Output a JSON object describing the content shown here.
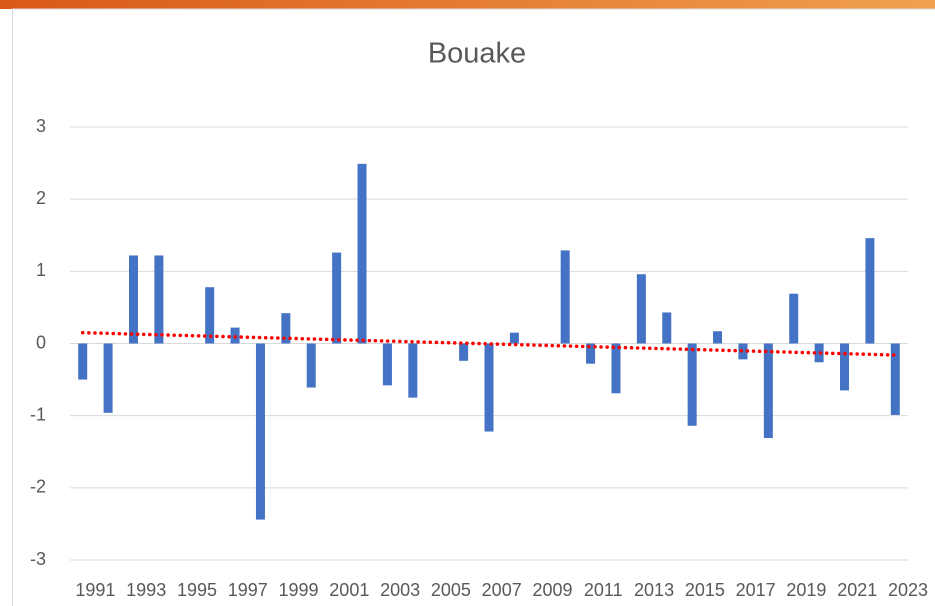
{
  "chart_data": {
    "type": "bar",
    "title": "Bouake",
    "categories": [
      "1991",
      null,
      "1993",
      null,
      "1995",
      null,
      "1997",
      null,
      "1999",
      null,
      "2001",
      null,
      "2003",
      null,
      "2005",
      null,
      "2007",
      null,
      "2009",
      null,
      "2011",
      null,
      "2013",
      null,
      "2015",
      null,
      "2017",
      null,
      "2019",
      null,
      "2021",
      null,
      "2023"
    ],
    "values": [
      -0.5,
      -0.96,
      1.22,
      1.22,
      0,
      0.78,
      0.22,
      -2.44,
      0.42,
      -0.61,
      1.26,
      2.49,
      -0.58,
      -0.75,
      0,
      -0.24,
      -1.22,
      0.15,
      0,
      1.29,
      -0.28,
      -0.69,
      0.96,
      0.43,
      -1.14,
      0.17,
      -0.22,
      -1.31,
      0.69,
      -0.26,
      -0.65,
      1.46,
      -0.99
    ],
    "color": "#4472c4",
    "ylim": [
      -3,
      3
    ],
    "yticks": [
      -3,
      -2,
      -1,
      0,
      1,
      2,
      3
    ],
    "grid": true,
    "trendline": {
      "start": 0.15,
      "end": -0.16,
      "color": "#ff0000"
    }
  }
}
